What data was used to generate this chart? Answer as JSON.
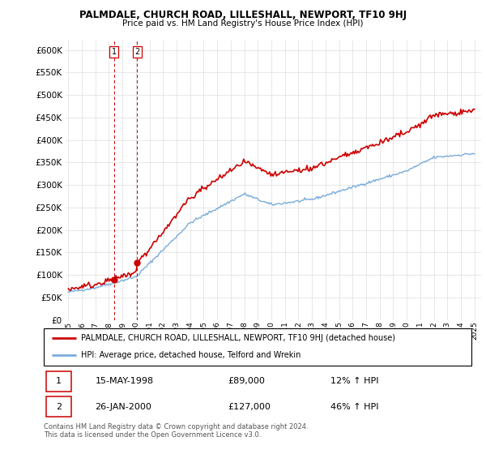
{
  "title": "PALMDALE, CHURCH ROAD, LILLESHALL, NEWPORT, TF10 9HJ",
  "subtitle": "Price paid vs. HM Land Registry's House Price Index (HPI)",
  "legend_line1": "PALMDALE, CHURCH ROAD, LILLESHALL, NEWPORT, TF10 9HJ (detached house)",
  "legend_line2": "HPI: Average price, detached house, Telford and Wrekin",
  "transaction1_date": "15-MAY-1998",
  "transaction1_price": "£89,000",
  "transaction1_hpi": "12% ↑ HPI",
  "transaction2_date": "26-JAN-2000",
  "transaction2_price": "£127,000",
  "transaction2_hpi": "46% ↑ HPI",
  "footer": "Contains HM Land Registry data © Crown copyright and database right 2024.\nThis data is licensed under the Open Government Licence v3.0.",
  "red_color": "#cc0000",
  "blue_color": "#7aabdb",
  "dashed_red_color": "#cc0000",
  "grid_color": "#dddddd",
  "ylim": [
    0,
    620000
  ],
  "yticks": [
    0,
    50000,
    100000,
    150000,
    200000,
    250000,
    300000,
    350000,
    400000,
    450000,
    500000,
    550000,
    600000
  ],
  "xlim_start": 1994.8,
  "xlim_end": 2025.5,
  "transaction1_x": 1998.37,
  "transaction1_y": 89000,
  "transaction2_x": 2000.07,
  "transaction2_y": 127000
}
